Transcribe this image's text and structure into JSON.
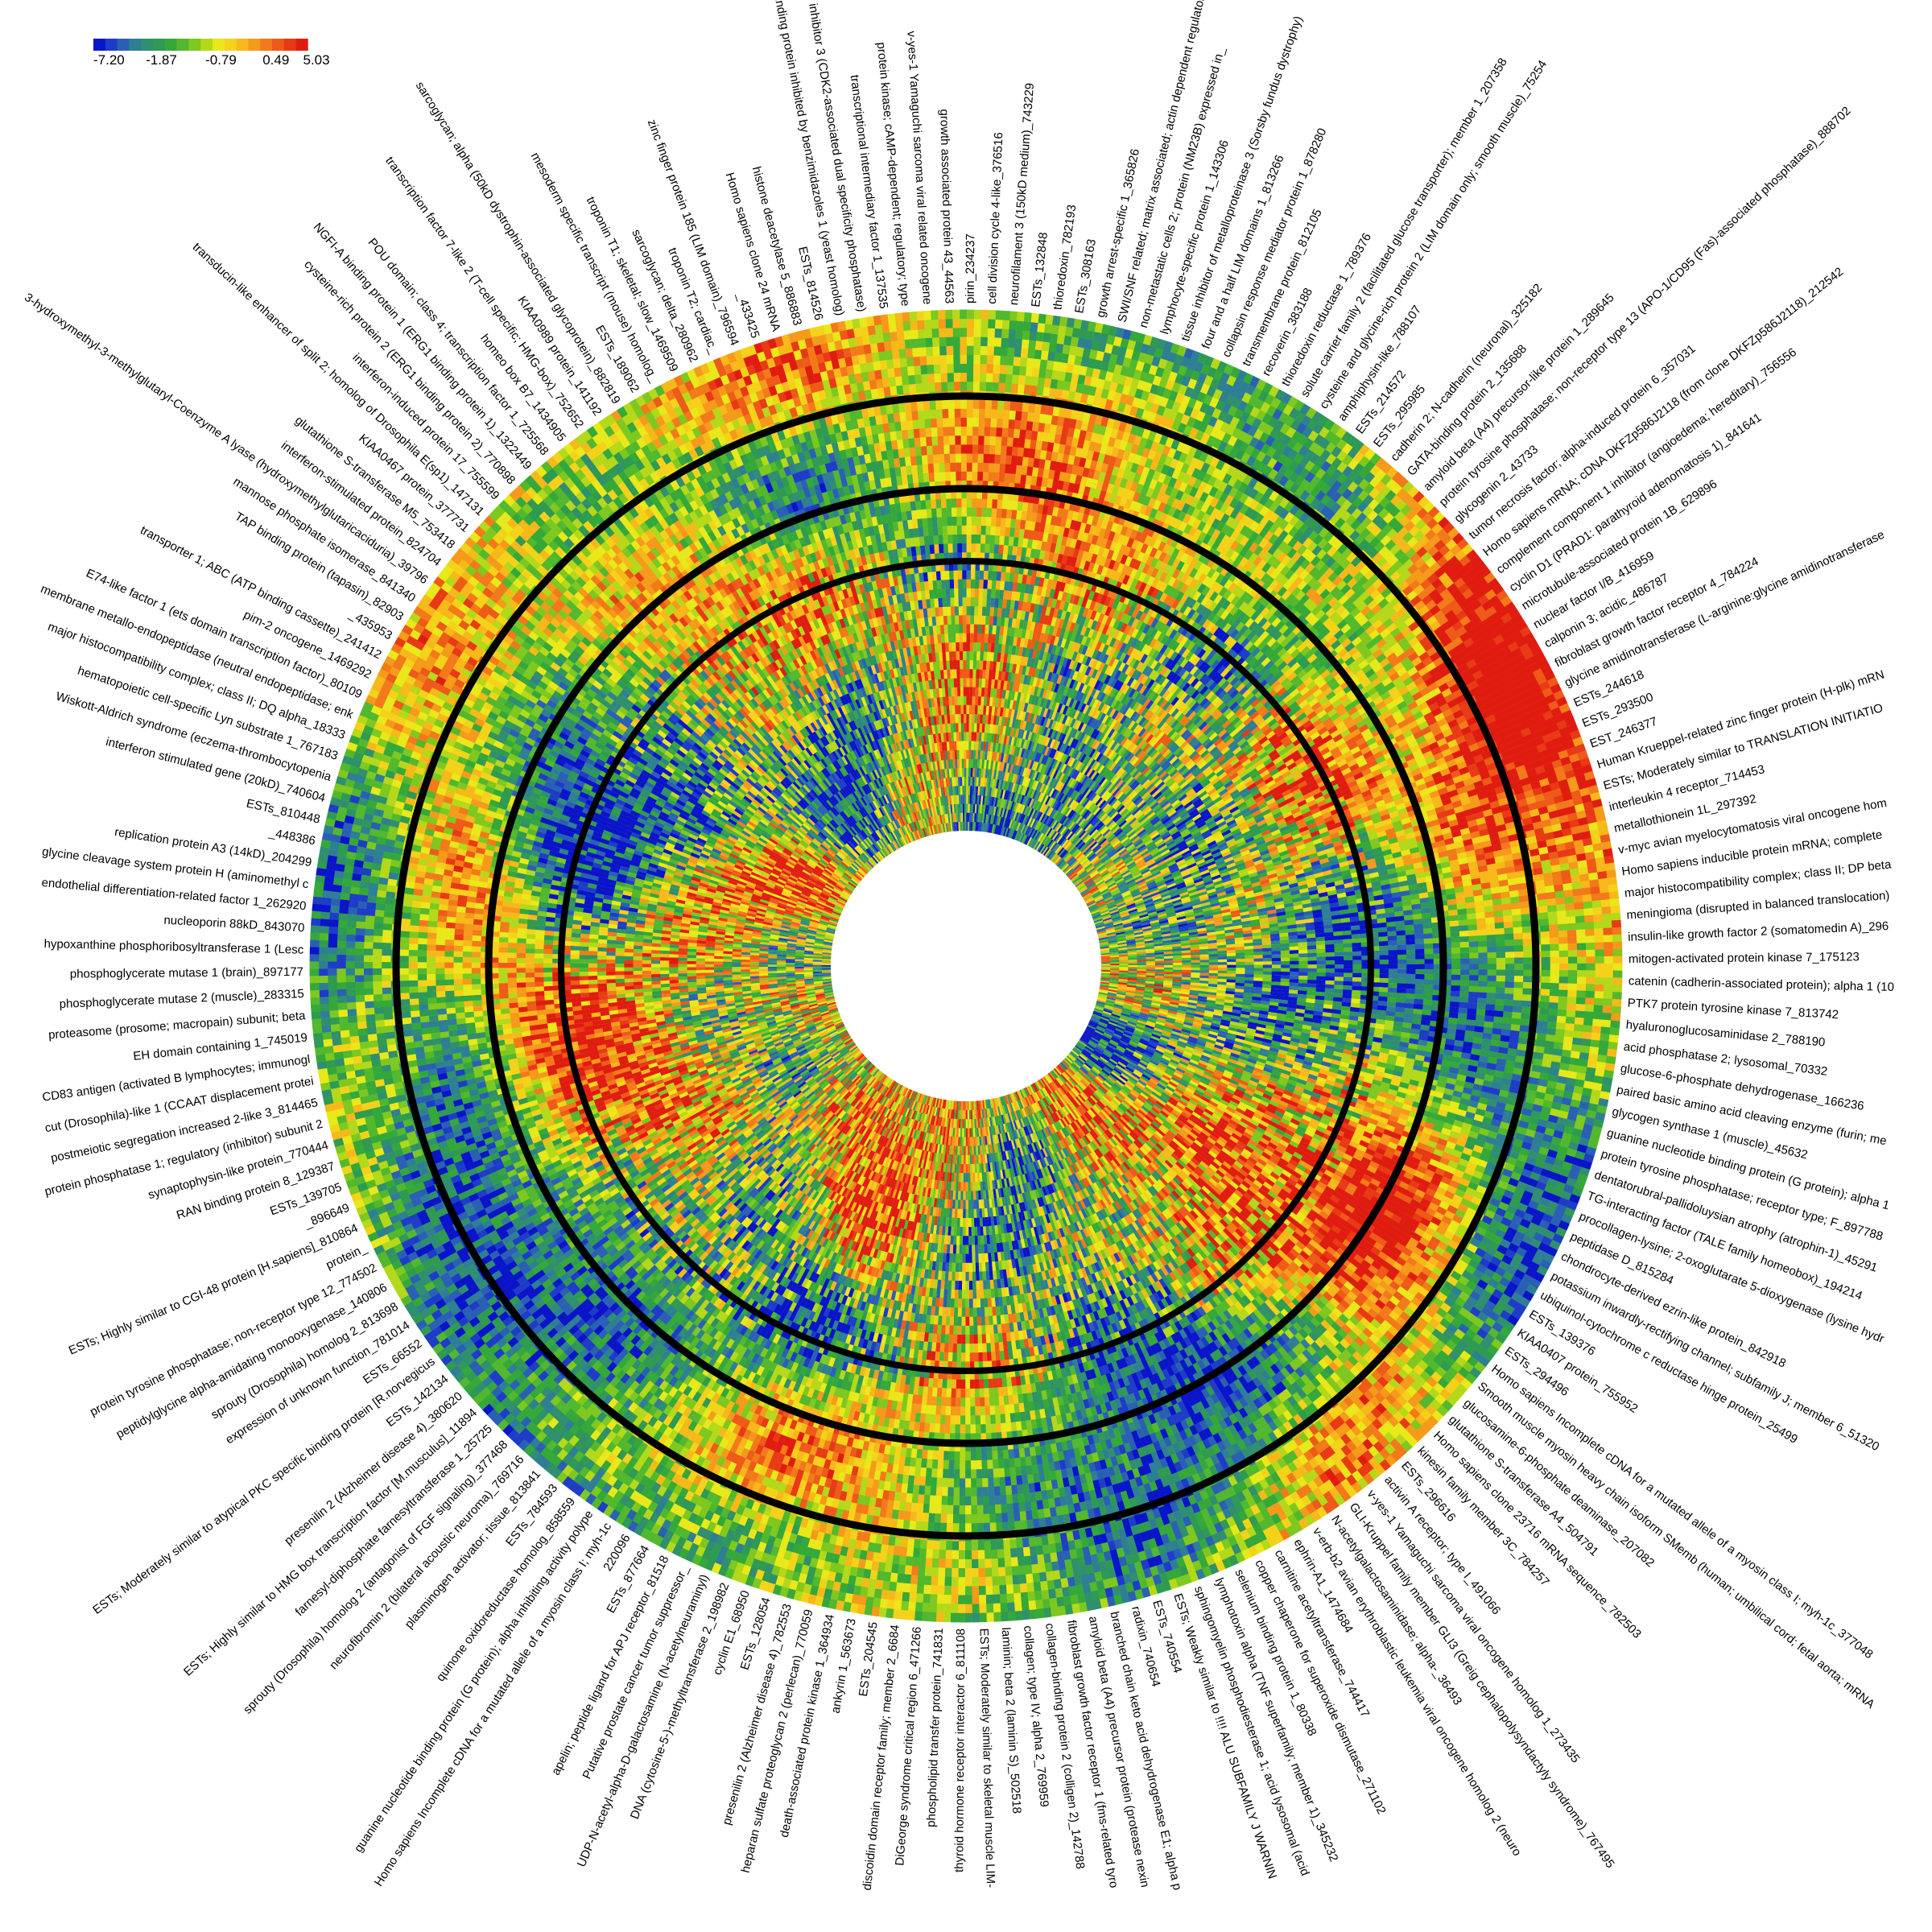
{
  "chart_data": {
    "type": "heatmap",
    "layout": "circular",
    "title": "",
    "legend": {
      "placement": "top-left",
      "ticks": [
        "-7.20",
        "-1.87",
        "-0.79",
        "0.49",
        "5.03"
      ],
      "colors": [
        "#0a14c8",
        "#1e3cc8",
        "#2a60b4",
        "#2e7f94",
        "#2f8f6e",
        "#2f9a52",
        "#35a83a",
        "#52b82e",
        "#7ec820",
        "#b4d81a",
        "#e8e81a",
        "#f5d21a",
        "#f7b81a",
        "#f59a1a",
        "#f27a1a",
        "#ee5a18",
        "#e83a14",
        "#e01c10"
      ]
    },
    "rings": 3,
    "labels": [
      "mitogen-activated protein kinase 7_175123",
      "catenin (cadherin-associated protein); alpha 1 (10",
      "PTK7 protein tyrosine kinase 7_813742",
      "hyaluronoglucosaminidase 2_788190",
      "acid phosphatase 2; lysosomal_70332",
      "glucose-6-phosphate dehydrogenase_166236",
      "paired basic amino acid cleaving enzyme (furin; me",
      "glycogen synthase 1 (muscle)_45632",
      "guanine nucleotide binding protein (G protein); alpha 1",
      "protein tyrosine phosphatase; receptor type; F_897788",
      "dentatorubral-pallidoluysian atrophy (atrophin-1)_45291",
      "TG-interacting factor (TALE family homeobox)_194214",
      "procollagen-lysine; 2-oxoglutarate 5-dioxygenase (lysine hydr",
      "peptidase D_815284",
      "chondrocyte-derived ezrin-like protein_842918",
      "potassium inwardly-rectifying channel; subfamily J; member 6_51320",
      "ubiquinol-cytochrome c reductase hinge protein_25499",
      "ESTs_139376",
      "KIAA0407 protein_755952",
      "ESTs_294496",
      "Homo sapiens Incomplete cDNA for a mutated allele of a myosin class I; myh-1c_377048",
      "Smooth muscle myosin heavy chain isoform SMemb (human; umbilical cord; fetal aorta; mRNA",
      "glucosamine-6-phosphate deaminase_207082",
      "glutathione S-transferase A4_504791",
      "Homo sapiens clone 23716 mRNA sequence_782503",
      "kinesin family member 3C_784257",
      "ESTs_296616",
      "activin A receptor; type I_491066",
      "v-yes-1 Yamaguchi sarcoma viral oncogene homolog 1_273435",
      "GLI-Kruppel family member GLI3 (Greig cephalopolysyndactyly syndrome)_767495",
      "N-acetylgalactosaminidase; alpha-_36493",
      "v-erb-b2 avian erythroblastic leukemia viral oncogene homolog 2 (neuro",
      "ephrin-A1_1474684",
      "carnitine acetyltransferase_744417",
      "copper chaperone for superoxide dismutase_271102",
      "selenium binding protein 1_80338",
      "lymphotoxin alpha (TNF superfamily; member 1)_345232",
      "sphingomyelin phosphodiesterase 1; acid lysosomal (acid",
      "ESTs; Weakly similar to !!!! ALU SUBFAMILY J WARNIN",
      "ESTs_740554",
      "radixin_740654",
      "branched chain keto acid dehydrogenase E1; alpha p",
      "amyloid beta (A4) precursor protein (protease nexin",
      "fibroblast growth factor receptor 1 (fms-related tyro",
      "collagen-binding protein 2 (colligen 2)_142788",
      "collagen; type IV; alpha 2_769959",
      "laminin; beta 2 (laminin S)_502518",
      "ESTs; Moderately similar to skeletal muscle LIM-",
      "thyroid hormone receptor interactor 6_811108",
      "phospholipid transfer protein_741831",
      "DiGeorge syndrome critical region 6_471266",
      "discoidin domain receptor family; member 2_6684",
      "ESTs_204545",
      "ankyrin 1_563673",
      "death-associated protein kinase 1_364934",
      "heparan sulfate proteoglycan 2 (perlecan)_770059",
      "presenilin 2 (Alzheimer disease 4)_782553",
      "ESTs_128054",
      "cyclin E1_68950",
      "DNA (cytosine-5-)-methyltransferase 2_198982",
      "UDP-N-acetyl-alpha-D-galactosamine (N-acetylneuraminyl)",
      "Putative prostate cancer tumor suppressor_",
      "apelin; peptide ligand for APJ receptor_81518",
      "ESTs_877664",
      "220096",
      "Homo sapiens Incomplete cDNA for a mutated allele of a myosin class I; myh-1c",
      "guanine nucleotide binding protein (G protein); alpha inhibiting activity polype",
      "quinone oxidoreductase homolog_858559",
      "ESTs_784593",
      "plasminogen activator; tissue_813841",
      "neurofibromin 2 (bilateral acoustic neuroma)_769716",
      "sprouty (Drosophila) homolog 2 (antagonist of FGF signaling)_377468",
      "farnesyl-diphosphate farnesyltransferase 1_25725",
      "ESTs; Highly similar to HMG box transcription factor [M.musculus]_11894",
      "presenilin 2 (Alzheimer disease 4)_380620",
      "ESTs_142134",
      "ESTs; Moderately similar to atypical PKC specific binding protein [R.norvegicus",
      "ESTs_66552",
      "expression of unknown function_781014",
      "sprouty (Drosophila) homolog 2_813698",
      "peptidylglycine alpha-amidating monooxygenase_140806",
      "protein tyrosine phosphatase; non-receptor type 12_774502",
      "protein_",
      "ESTs; Highly similar to CGI-48 protein [H.sapiens]_810864",
      "_896649",
      "ESTs_139705",
      "RAN binding protein 8_129387",
      "synaptophysin-like protein_770444",
      "protein phosphatase 1; regulatory (inhibitor) subunit 2",
      "postmeiotic segregation increased 2-like 3_814465",
      "cut (Drosophila)-like 1 (CCAAT displacement protei",
      "CD83 antigen (activated B lymphocytes; immunogl",
      "EH domain containing 1_745019",
      "proteasome (prosome; macropain) subunit; beta",
      "phosphoglycerate mutase 2 (muscle)_283315",
      "phosphoglycerate mutase 1 (brain)_897177",
      "hypoxanthine phosphoribosyltransferase 1 (Lesc",
      "nucleoporin 88kD_843070",
      "endothelial differentiation-related factor 1_262920",
      "glycine cleavage system protein H (aminomethyl c",
      "replication protein A3 (14kD)_204299",
      "_448386",
      "ESTs_810448",
      "interferon stimulated gene (20kD)_740604",
      "Wiskott-Aldrich syndrome (eczema-thrombocytopenia",
      "hematopoietic cell-specific Lyn substrate 1_767183",
      "major histocompatibility complex; class II; DQ alpha_18333",
      "membrane metallo-endopeptidase (neutral endopeptidase; enk",
      "E74-like factor 1 (ets domain transcription factor)_80109",
      "pim-2 oncogene_1469292",
      "transporter 1; ABC (ATP binding cassette)_241412",
      "_435953",
      "TAP binding protein (tapasin)_82903",
      "mannose phosphate isomerase_841340",
      "3-hydroxymethyl-3-methylglutaryl-Coenzyme A lyase (hydroxymethylglutaricaciduria)_39796",
      "interferon-stimulated protein_824704",
      "glutathione S-transferase M5_753418",
      "KIAA0467 protein_377731",
      "transducin-like enhancer of split 2; homolog of Drosophila E(sp1)_147131",
      "interferon-induced protein 17_755599",
      "cysteine-rich protein 2 (ERG1 binding protein 2)_770898",
      "NGFI-A binding protein 1 (ERG1 binding protein 1)_1322449",
      "POU domain; class 4; transcription factor 1_725568",
      "homeo box B7_1434905",
      "transcription factor 7-like 2 (T-cell specific; HMG-box)_752652",
      "KIAA0989 protein_141192",
      "sarcoglycan; alpha (50kD dystrophin-associated glycoprotein)_882819",
      "ESTs_189062",
      "mesoderm specific transcript (mouse) homolog_",
      "troponin T1; skeletal; slow_1469509",
      "sarcoglycan; delta_280962",
      "troponin T2; cardiac_",
      "zinc finger protein 185 (LIM domain)_796594",
      "_433425",
      "Homo sapiens clone 24 mRNA",
      "histone deacetylase 5_886883",
      "ESTs_814526",
      "binding protein inhibited by benzimidazoles 1 (yeast homolog)",
      "cyclin-dependent kinase inhibitor 3 (CDK2-associated dual specificity phosphatase)",
      "transcriptional intermediary factor 1_137535",
      "protein kinase; cAMP-dependent; regulatory; type",
      "v-yes-1 Yamaguchi sarcoma viral related oncogene",
      "growth associated protein 43_44563",
      "pirin_234237",
      "cell division cycle 4-like_376516",
      "neurofilament 3 (150kD medium)_743229",
      "ESTs_132848",
      "thioredoxin_782193",
      "ESTs_308163",
      "growth arrest-specific 1_365826",
      "SWI/SNF related; matrix associated; actin dependent regulator",
      "non-metastatic cells 2; protein (NM23B) expressed in_",
      "lymphocyte-specific protein 1_143306",
      "tissue inhibitor of metalloproteinase 3 (Sorsby fundus dystrophy)",
      "four and a half LIM domains 1_813266",
      "collapsin response mediator protein 1_878280",
      "transmembrane protein_812105",
      "recoverin_383188",
      "thioredoxin reductase 1_789376",
      "solute carrier family 2 (facilitated glucose transporter); member 1_207358",
      "cysteine and glycine-rich protein 2 (LIM domain only; smooth muscle)_75254",
      "amphiphysin-like_788107",
      "ESTs_214572",
      "ESTs_295985",
      "cadherin 2; N-cadherin (neuronal)_325182",
      "GATA-binding protein 2_135688",
      "amyloid beta (A4) precursor-like protein 1_289645",
      "protein tyrosine phosphatase; non-receptor type 13 (APO-1/CD95 (Fas)-associated phosphatase)_888702",
      "glycogenin 2_43733",
      "tumor necrosis factor; alpha-induced protein 6_357031",
      "Homo sapiens mRNA; cDNA DKFZp586J2118 (from clone DKFZp586J2118)_212542",
      "complement component 1 inhibitor (angioedema; hereditary)_756556",
      "cyclin D1 (PRAD1: parathyroid adenomatosis 1)_841641",
      "microtubule-associated protein 1B_629896",
      "nuclear factor I/B_416959",
      "calponin 3; acidic_486787",
      "fibroblast growth factor receptor 4_784224",
      "glycine amidinotransferase (L-arginine:glycine amidinotransferase",
      "ESTs_244618",
      "ESTs_293500",
      "EST_246377",
      "Human Krueppel-related zinc finger protein (H-plk) mRN",
      "ESTs; Moderately similar to TRANSLATION INITIATIO",
      "interleukin 4 receptor_714453",
      "metallothionein 1L_297392",
      "v-myc avian myelocytomatosis viral oncogene hom",
      "Homo sapiens inducible protein mRNA; complete",
      "major histocompatibility complex; class II; DP beta",
      "meningioma (disrupted in balanced translocation)",
      "insulin-like growth factor 2 (somatomedin A)_296"
    ]
  }
}
